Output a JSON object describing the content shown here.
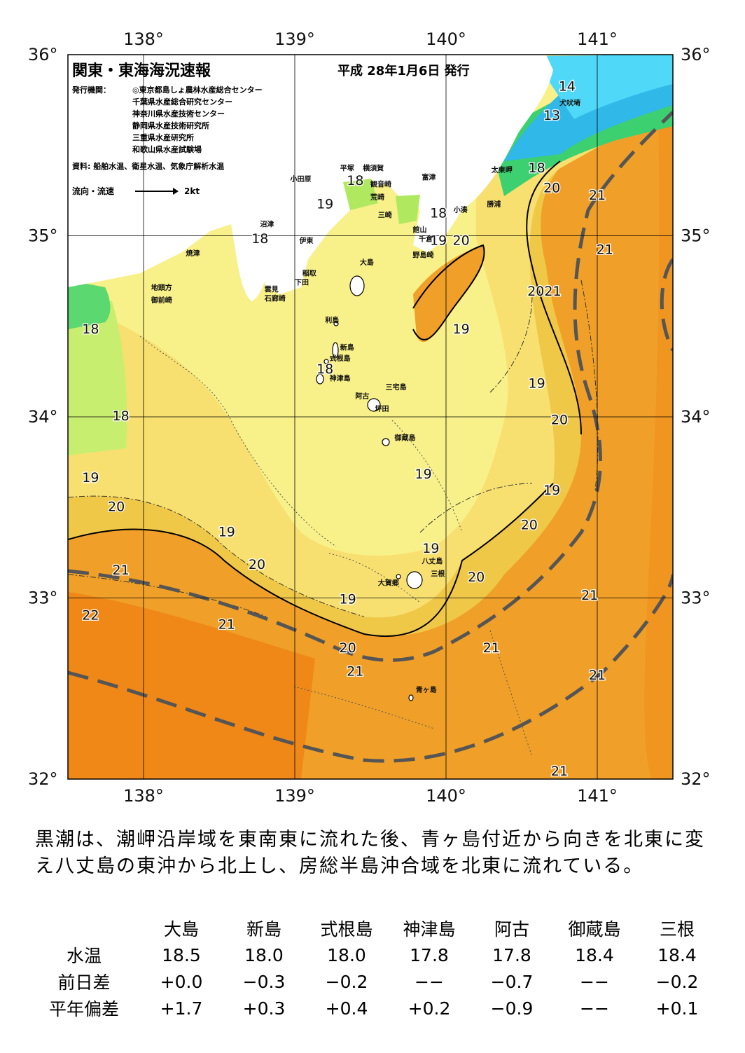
{
  "title": "関東・東海海況速報",
  "issue_date": "平成 28年1月6日 発行",
  "publisher_label": "発行機関：",
  "publishers": [
    "◎東京都島しょ農林水産総合センター",
    "千葉県水産総合研究センター",
    "神奈川県水産技術センター",
    "静岡県水産技術研究所",
    "三重県水産研究所",
    "和歌山県水産試験場"
  ],
  "sources": "資料: 船舶水温、衛星水温、気象庁解析水温",
  "flow_legend": {
    "label": "流向・流速",
    "speed": "2kt"
  },
  "axes": {
    "lon_ticks": [
      "138°",
      "139°",
      "140°",
      "141°"
    ],
    "lat_ticks": [
      "36°",
      "35°",
      "34°",
      "33°",
      "32°"
    ],
    "lon_range": [
      137.5,
      141.5
    ],
    "lat_range": [
      32,
      36
    ]
  },
  "colors": {
    "t14": "#2fd0f0",
    "t15": "#1fb0e0",
    "t16": "#3cd070",
    "t17": "#b0e860",
    "t18": "#e8f080",
    "t19": "#f8f088",
    "t20": "#f0c848",
    "t21": "#f0a028",
    "t22": "#f08818",
    "land": "#ffffff",
    "kuroshio_axis": "#555555"
  },
  "isotherm_labels": [
    {
      "value": "14",
      "lon": 140.8,
      "lat": 35.8
    },
    {
      "value": "13",
      "lon": 140.7,
      "lat": 35.64
    },
    {
      "value": "18",
      "lon": 140.6,
      "lat": 35.35
    },
    {
      "value": "20",
      "lon": 140.7,
      "lat": 35.24
    },
    {
      "value": "21",
      "lon": 141.0,
      "lat": 35.2
    },
    {
      "value": "18",
      "lon": 139.4,
      "lat": 35.28
    },
    {
      "value": "19",
      "lon": 139.2,
      "lat": 35.15
    },
    {
      "value": "18",
      "lon": 139.95,
      "lat": 35.1
    },
    {
      "value": "19",
      "lon": 139.95,
      "lat": 34.95
    },
    {
      "value": "20",
      "lon": 140.1,
      "lat": 34.95
    },
    {
      "value": "21",
      "lon": 141.05,
      "lat": 34.9
    },
    {
      "value": "18",
      "lon": 138.77,
      "lat": 34.96
    },
    {
      "value": "2021",
      "lon": 140.65,
      "lat": 34.67
    },
    {
      "value": "18",
      "lon": 137.65,
      "lat": 34.46
    },
    {
      "value": "19",
      "lon": 140.1,
      "lat": 34.46
    },
    {
      "value": "18",
      "lon": 139.2,
      "lat": 34.24
    },
    {
      "value": "19",
      "lon": 140.6,
      "lat": 34.16
    },
    {
      "value": "18",
      "lon": 137.85,
      "lat": 33.98
    },
    {
      "value": "20",
      "lon": 140.75,
      "lat": 33.96
    },
    {
      "value": "19",
      "lon": 137.65,
      "lat": 33.64
    },
    {
      "value": "19",
      "lon": 139.85,
      "lat": 33.66
    },
    {
      "value": "19",
      "lon": 140.7,
      "lat": 33.57
    },
    {
      "value": "20",
      "lon": 137.82,
      "lat": 33.48
    },
    {
      "value": "20",
      "lon": 140.55,
      "lat": 33.38
    },
    {
      "value": "19",
      "lon": 138.55,
      "lat": 33.34
    },
    {
      "value": "19",
      "lon": 139.9,
      "lat": 33.25
    },
    {
      "value": "21",
      "lon": 137.85,
      "lat": 33.13
    },
    {
      "value": "20",
      "lon": 138.75,
      "lat": 33.16
    },
    {
      "value": "20",
      "lon": 140.2,
      "lat": 33.09
    },
    {
      "value": "19",
      "lon": 139.35,
      "lat": 32.97
    },
    {
      "value": "21",
      "lon": 140.95,
      "lat": 32.99
    },
    {
      "value": "22",
      "lon": 137.65,
      "lat": 32.88
    },
    {
      "value": "21",
      "lon": 138.55,
      "lat": 32.83
    },
    {
      "value": "20",
      "lon": 139.35,
      "lat": 32.7
    },
    {
      "value": "21",
      "lon": 140.3,
      "lat": 32.7
    },
    {
      "value": "21",
      "lon": 139.4,
      "lat": 32.57
    },
    {
      "value": "21",
      "lon": 141.0,
      "lat": 32.55
    },
    {
      "value": "21",
      "lon": 140.75,
      "lat": 32.02
    }
  ],
  "place_labels": [
    {
      "name": "犬吠埼",
      "lon": 140.75,
      "lat": 35.72
    },
    {
      "name": "太東岬",
      "lon": 140.3,
      "lat": 35.35
    },
    {
      "name": "勝浦",
      "lon": 140.27,
      "lat": 35.16
    },
    {
      "name": "小湊",
      "lon": 140.05,
      "lat": 35.13
    },
    {
      "name": "富津",
      "lon": 139.84,
      "lat": 35.31
    },
    {
      "name": "横須賀",
      "lon": 139.45,
      "lat": 35.36
    },
    {
      "name": "観音崎",
      "lon": 139.5,
      "lat": 35.27
    },
    {
      "name": "荒崎",
      "lon": 139.5,
      "lat": 35.2
    },
    {
      "name": "三崎",
      "lon": 139.55,
      "lat": 35.1
    },
    {
      "name": "平塚",
      "lon": 139.3,
      "lat": 35.36
    },
    {
      "name": "小田原",
      "lon": 138.97,
      "lat": 35.3
    },
    {
      "name": "館山",
      "lon": 139.78,
      "lat": 35.02
    },
    {
      "name": "千倉",
      "lon": 139.82,
      "lat": 34.97
    },
    {
      "name": "野島崎",
      "lon": 139.78,
      "lat": 34.88
    },
    {
      "name": "沼津",
      "lon": 138.77,
      "lat": 35.05
    },
    {
      "name": "伊東",
      "lon": 139.03,
      "lat": 34.96
    },
    {
      "name": "焼津",
      "lon": 138.28,
      "lat": 34.89
    },
    {
      "name": "稲取",
      "lon": 139.05,
      "lat": 34.78
    },
    {
      "name": "下田",
      "lon": 139.0,
      "lat": 34.73
    },
    {
      "name": "雲見",
      "lon": 138.8,
      "lat": 34.69
    },
    {
      "name": "石廊崎",
      "lon": 138.8,
      "lat": 34.64
    },
    {
      "name": "地頭方",
      "lon": 138.05,
      "lat": 34.7
    },
    {
      "name": "御前崎",
      "lon": 138.05,
      "lat": 34.63
    },
    {
      "name": "大島",
      "lon": 139.43,
      "lat": 34.84
    },
    {
      "name": "利島",
      "lon": 139.2,
      "lat": 34.52
    },
    {
      "name": "新島",
      "lon": 139.3,
      "lat": 34.37
    },
    {
      "name": "式根島",
      "lon": 139.23,
      "lat": 34.31
    },
    {
      "name": "神津島",
      "lon": 139.23,
      "lat": 34.2
    },
    {
      "name": "三宅島",
      "lon": 139.6,
      "lat": 34.15
    },
    {
      "name": "阿古",
      "lon": 139.4,
      "lat": 34.1
    },
    {
      "name": "坪田",
      "lon": 139.53,
      "lat": 34.03
    },
    {
      "name": "御蔵島",
      "lon": 139.66,
      "lat": 33.87
    },
    {
      "name": "八丈島",
      "lon": 139.84,
      "lat": 33.19
    },
    {
      "name": "三根",
      "lon": 139.9,
      "lat": 33.12
    },
    {
      "name": "大賀郷",
      "lon": 139.55,
      "lat": 33.07
    },
    {
      "name": "青ヶ島",
      "lon": 139.8,
      "lat": 32.48
    }
  ],
  "summary": "黒潮は、潮岬沿岸域を東南東に流れた後、青ヶ島付近から向きを北東に変え八丈島の東沖から北上し、房総半島沖合域を北東に流れている。",
  "station_table": {
    "stations": [
      "大島",
      "新島",
      "式根島",
      "神津島",
      "阿古",
      "御蔵島",
      "三根"
    ],
    "rows": [
      {
        "label": "水温",
        "values": [
          "18.5",
          "18.0",
          "18.0",
          "17.8",
          "17.8",
          "18.4",
          "18.4"
        ]
      },
      {
        "label": "前日差",
        "values": [
          "+0.0",
          "−0.3",
          "−0.2",
          "−−",
          "−0.7",
          "−−",
          "−0.2"
        ]
      },
      {
        "label": "平年偏差",
        "values": [
          "+1.7",
          "+0.3",
          "+0.4",
          "+0.2",
          "−0.9",
          "−−",
          "+0.1"
        ]
      }
    ]
  }
}
